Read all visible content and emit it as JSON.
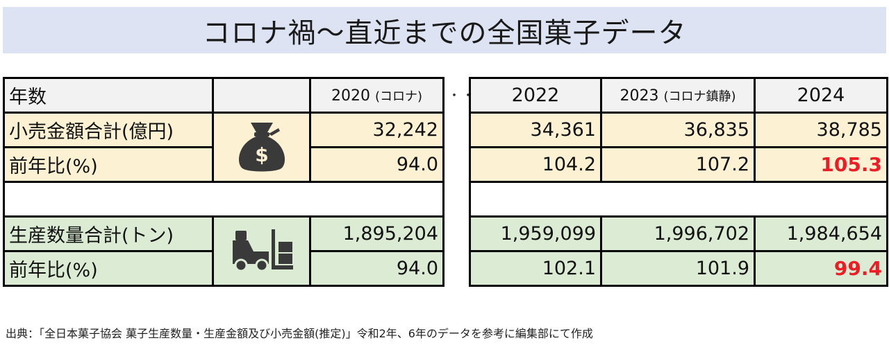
{
  "title": "コロナ禍～直近までの全国菓子データ",
  "left_table": {
    "header": {
      "label": "年数",
      "year": "2020",
      "year_note": "(コロナ)"
    },
    "rows": {
      "sales_total": {
        "label": "小売金額合計(億円)",
        "value": "32,242"
      },
      "sales_yoy": {
        "label": "前年比(%)",
        "value": "94.0"
      },
      "volume_total": {
        "label": "生産数量合計(トン)",
        "value": "1,895,204"
      },
      "volume_yoy": {
        "label": "前年比(%)",
        "value": "94.0"
      }
    },
    "icons": {
      "sales": "money-bag-icon",
      "volume": "forklift-icon"
    }
  },
  "separator": "・・",
  "right_table": {
    "years": [
      {
        "year": "2022",
        "note": ""
      },
      {
        "year": "2023",
        "note": "(コロナ鎮静)"
      },
      {
        "year": "2024",
        "note": ""
      }
    ],
    "sales_total": [
      "34,361",
      "36,835",
      "38,785"
    ],
    "sales_yoy": [
      "104.2",
      "107.2",
      "105.3"
    ],
    "volume_total": [
      "1,959,099",
      "1,996,702",
      "1,984,654"
    ],
    "volume_yoy": [
      "102.1",
      "101.9",
      "99.4"
    ]
  },
  "colors": {
    "banner": "#dde3f3",
    "sales_rows": "#fdf1d3",
    "volume_rows": "#dcebd4",
    "header_row": "#f2f2f2",
    "highlight": "#ee1c25",
    "icon": "#3a3a3a"
  },
  "source": "出典：「全日本菓子協会 菓子生産数量・生産金額及び小売金額(推定)」令和2年、6年のデータを参考に編集部にて作成"
}
